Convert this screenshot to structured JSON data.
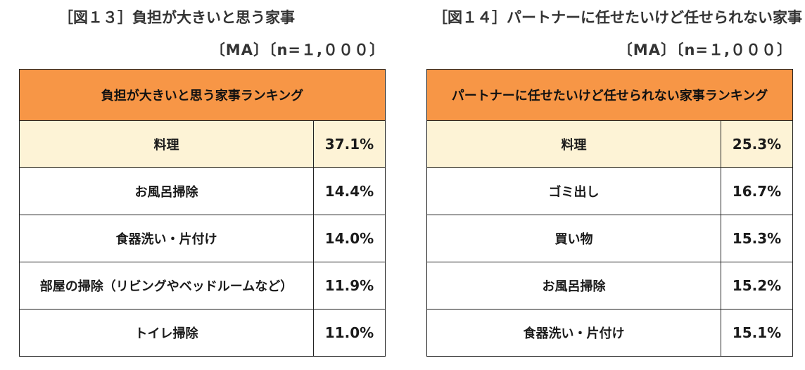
{
  "fig13": {
    "title": "［図１３］負担が大きいと思う家事",
    "subtitle": "〔MA〕〔n=１,０００〕",
    "header": "負担が大きいと思う家事ランキング",
    "rows": [
      {
        "item": "料理",
        "pct": "37.1%"
      },
      {
        "item": "お風呂掃除",
        "pct": "14.4%"
      },
      {
        "item": "食器洗い・片付け",
        "pct": "14.0%"
      },
      {
        "item": "部屋の掃除（リビングやベッドルームなど）",
        "pct": "11.9%"
      },
      {
        "item": "トイレ掃除",
        "pct": "11.0%"
      }
    ]
  },
  "fig14": {
    "title": "［図１４］パートナーに任せたいけど任せられない家事",
    "subtitle": "〔MA〕〔n=１,０００〕",
    "header": "パートナーに任せたいけど任せられない家事ランキング",
    "rows": [
      {
        "item": "料理",
        "pct": "25.3%"
      },
      {
        "item": "ゴミ出し",
        "pct": "16.7%"
      },
      {
        "item": "買い物",
        "pct": "15.3%"
      },
      {
        "item": "お風呂掃除",
        "pct": "15.2%"
      },
      {
        "item": "食器洗い・片付け",
        "pct": "15.1%"
      }
    ]
  },
  "colors": {
    "header_bg": "#f79646",
    "top_row_bg": "#fdf3d6",
    "border": "#222222"
  }
}
